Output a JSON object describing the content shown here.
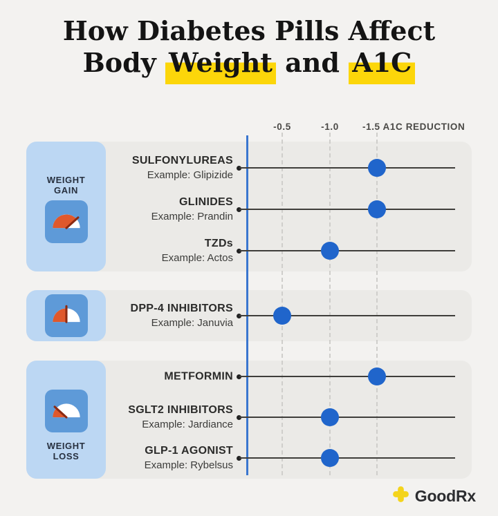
{
  "title": {
    "line1": "How Diabetes Pills Affect",
    "line2_prefix": "Body",
    "highlight_word1": "Weight",
    "line2_connector": "and",
    "highlight_word2": "A1C"
  },
  "axis": {
    "tick1": "-0.5",
    "tick2": "-1.0",
    "tick3": "-1.5",
    "axis_title": "A1C REDUCTION"
  },
  "sidebar": {
    "panels": [
      {
        "label_line1": "WEIGHT",
        "label_line2": "GAIN",
        "icon": "gauge-full-needle-up-right"
      },
      {
        "icon": "gauge-half-needle-up"
      },
      {
        "label_line1": "WEIGHT",
        "label_line2": "LOSS",
        "icon": "gauge-low-needle-up-left"
      }
    ]
  },
  "chart_data": {
    "type": "scatter",
    "title": "How Diabetes Pills Affect Body Weight and A1C",
    "xlabel": "A1C REDUCTION",
    "x_ticks": [
      -0.5,
      -1.0,
      -1.5
    ],
    "x_range": [
      0,
      -1.75
    ],
    "grid": "vertical-dashed",
    "groups": [
      {
        "category": "WEIGHT GAIN",
        "rows": [
          {
            "name": "SULFONYLUREAS",
            "example": "Example: Glipizide",
            "a1c_reduction": -1.5
          },
          {
            "name": "GLINIDES",
            "example": "Example: Prandin",
            "a1c_reduction": -1.5
          },
          {
            "name": "TZDs",
            "example": "Example: Actos",
            "a1c_reduction": -1.0
          }
        ]
      },
      {
        "category": "",
        "rows": [
          {
            "name": "DPP-4 INHIBITORS",
            "example": "Example: Januvia",
            "a1c_reduction": -0.5
          }
        ]
      },
      {
        "category": "WEIGHT LOSS",
        "rows": [
          {
            "name": "METFORMIN",
            "example": "",
            "a1c_reduction": -1.5
          },
          {
            "name": "SGLT2 INHIBITORS",
            "example": "Example: Jardiance",
            "a1c_reduction": -1.0
          },
          {
            "name": "GLP-1 AGONIST",
            "example": "Example: Rybelsus",
            "a1c_reduction": -1.0
          }
        ]
      }
    ]
  },
  "footer": {
    "brand": "GoodRx"
  },
  "colors": {
    "background": "#f3f2f0",
    "card": "#ebeae7",
    "panel_blue": "#bcd7f3",
    "icon_blue": "#5e9ad8",
    "gauge_red": "#df582c",
    "needle_maroon": "#8c2a12",
    "dot_blue": "#2065cb",
    "axis_blue": "#3a76cf",
    "highlight_yellow": "#fcd60a",
    "brand_yellow": "#f4d41c",
    "line_dark": "#3e3d3a"
  }
}
